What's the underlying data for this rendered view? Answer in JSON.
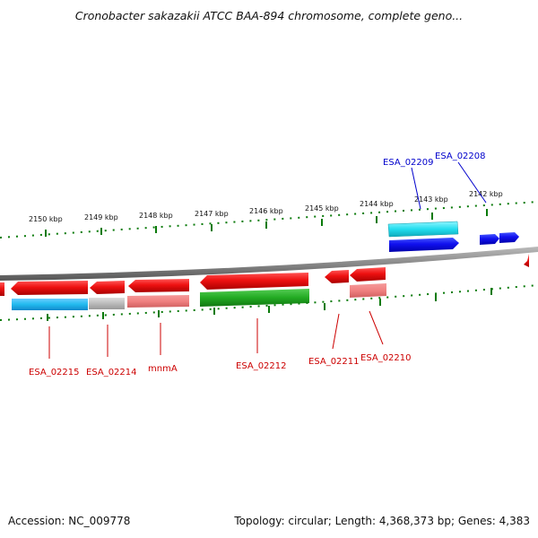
{
  "title": "Cronobacter sakazakii ATCC BAA-894 chromosome, complete geno...",
  "footer": {
    "accession": "Accession: NC_009778",
    "summary": "Topology: circular; Length: 4,368,373 bp; Genes: 4,383"
  },
  "ruler_ticks": [
    "2150 kbp",
    "2149 kbp",
    "2148 kbp",
    "2147 kbp",
    "2146 kbp",
    "2145 kbp",
    "2144 kbp",
    "2143 kbp",
    "2142 kbp"
  ],
  "gene_labels_reverse": [
    "ESA_02215",
    "ESA_02214",
    "mnmA",
    "ESA_02212",
    "ESA_02211",
    "ESA_02210"
  ],
  "gene_labels_forward": [
    "ESA_02209",
    "ESA_02208"
  ],
  "colors": {
    "reverse_cds": "#ee1111",
    "reverse_feature": "#f08080",
    "forward_cds": "#1010ee",
    "forward_feature": "#22ddee",
    "cyan_feature": "#22bbee",
    "grey_feature": "#bbbbbb",
    "green_feature": "#22aa22",
    "backbone": "#888888",
    "tick": "#0a7a0a",
    "reverse_label": "#cc0000",
    "forward_label": "#0000cc"
  }
}
